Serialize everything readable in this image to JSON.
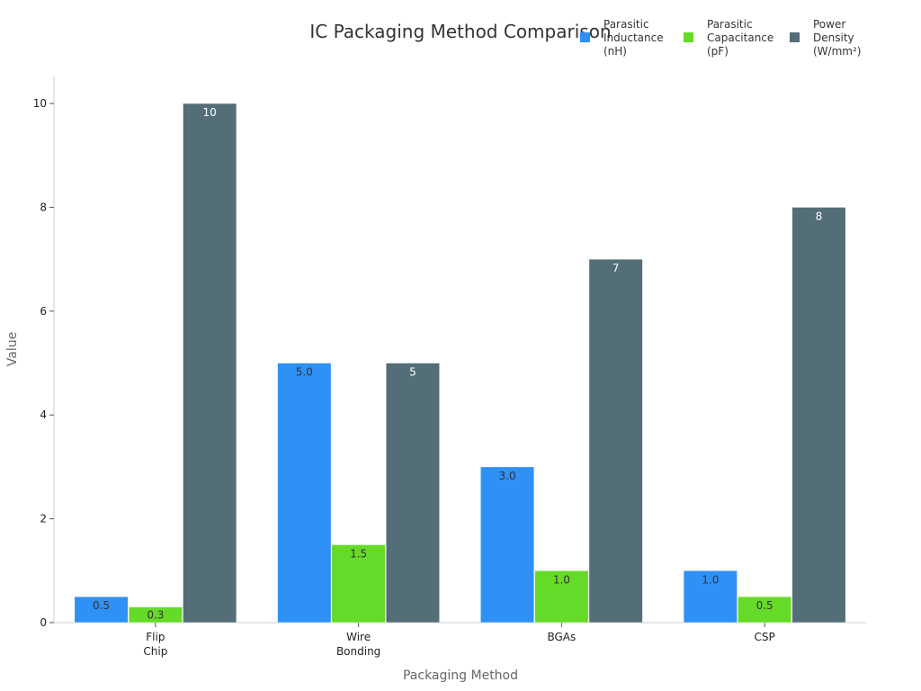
{
  "chart_data": {
    "type": "bar",
    "title": "IC Packaging Method Comparison",
    "xlabel": "Packaging Method",
    "ylabel": "Value",
    "categories": [
      [
        "Flip",
        "Chip"
      ],
      [
        "Wire",
        "Bonding"
      ],
      [
        "BGAs"
      ],
      [
        "CSP"
      ]
    ],
    "series": [
      {
        "name": [
          "Parasitic",
          "Inductance",
          "(nH)"
        ],
        "color": "#2f90f5",
        "label_color": "#333333",
        "values": [
          0.5,
          5.0,
          3.0,
          1.0
        ],
        "value_labels": [
          "0.5",
          "5.0",
          "3.0",
          "1.0"
        ]
      },
      {
        "name": [
          "Parasitic",
          "Capacitance",
          "(pF)"
        ],
        "color": "#65da28",
        "label_color": "#333333",
        "values": [
          0.3,
          1.5,
          1.0,
          0.5
        ],
        "value_labels": [
          "0.3",
          "1.5",
          "1.0",
          "0.5"
        ]
      },
      {
        "name": [
          "Power",
          "Density",
          "(W/mm²)"
        ],
        "color": "#546e78",
        "label_color": "#ffffff",
        "values": [
          10,
          5,
          7,
          8
        ],
        "value_labels": [
          "10",
          "5",
          "7",
          "8"
        ]
      }
    ],
    "ylim": [
      0,
      10.5
    ],
    "yticks": [
      0,
      2,
      4,
      6,
      8,
      10
    ],
    "grid": false,
    "legend_position": "top-right"
  }
}
